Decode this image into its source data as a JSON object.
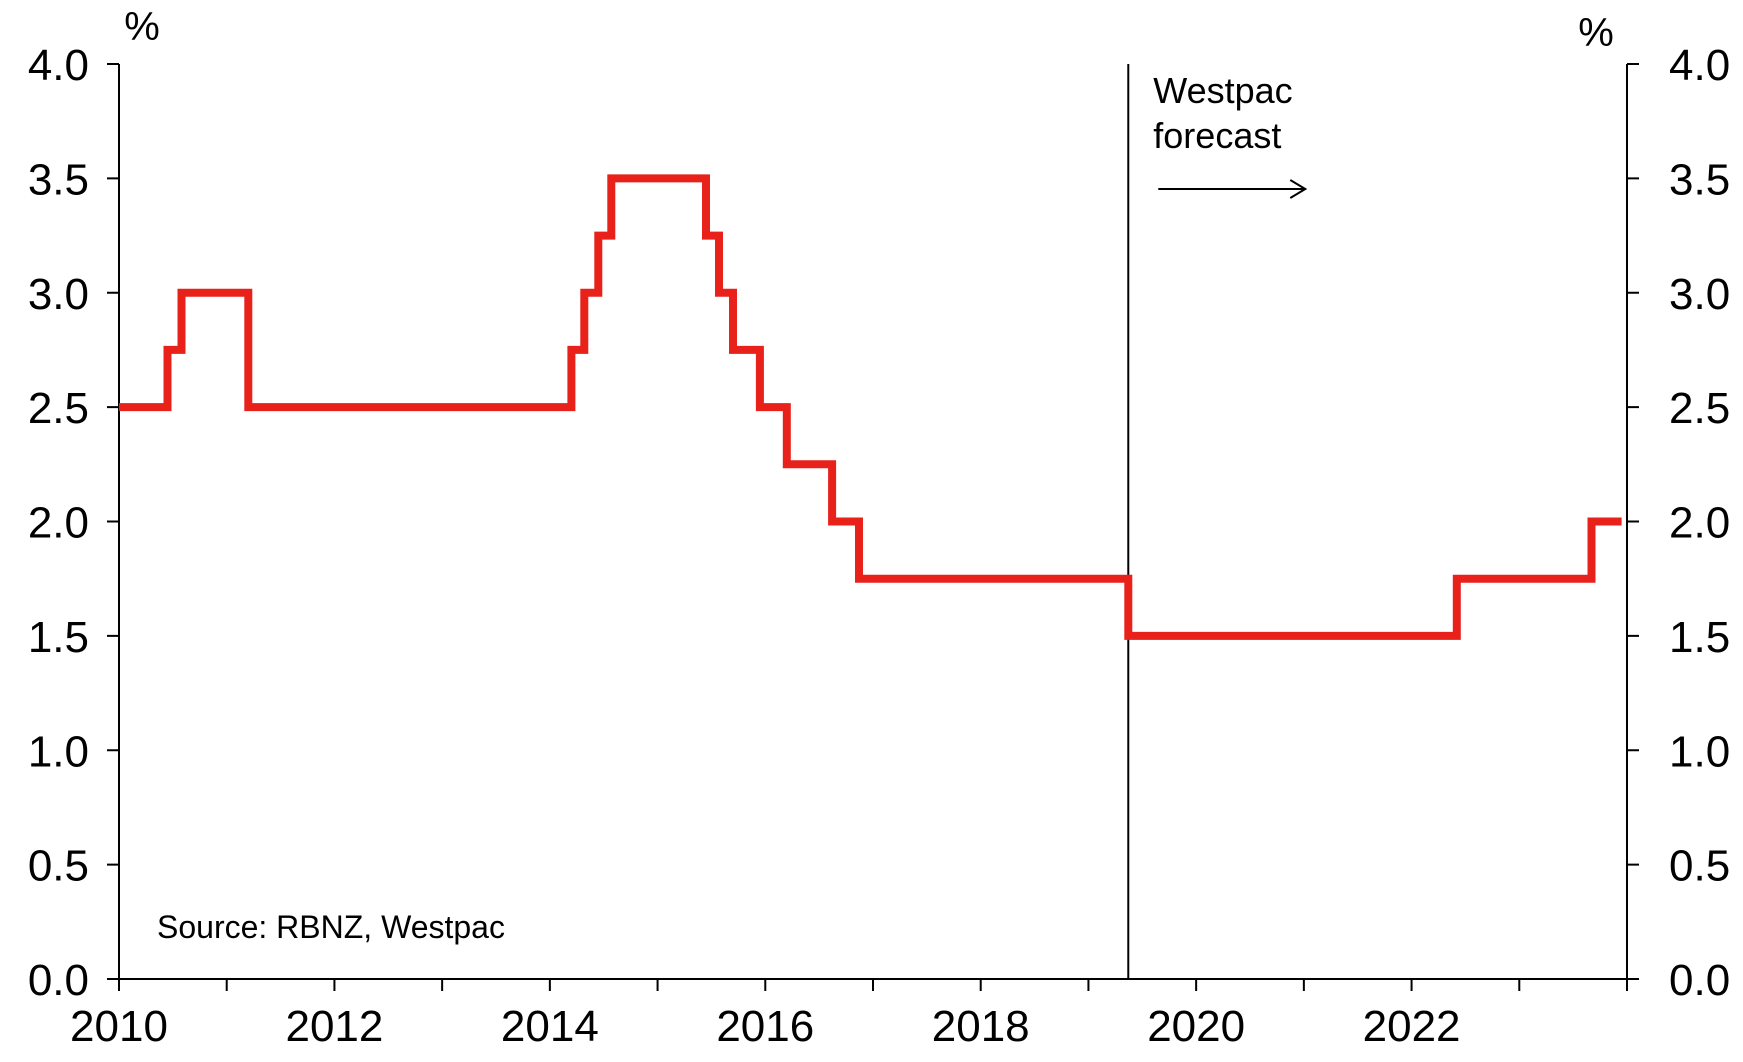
{
  "chart_data": {
    "type": "line",
    "step": true,
    "title": "",
    "xlabel": "",
    "ylabel_left": "%",
    "ylabel_right": "%",
    "xlim": [
      2010,
      2024
    ],
    "ylim": [
      0,
      4
    ],
    "y_ticks": [
      "0.0",
      "0.5",
      "1.0",
      "1.5",
      "2.0",
      "2.5",
      "3.0",
      "3.5",
      "4.0"
    ],
    "x_ticks": [
      "2010",
      "2012",
      "2014",
      "2016",
      "2018",
      "2020",
      "2022"
    ],
    "grid": false,
    "legend": "none",
    "source_note": "Source: RBNZ, Westpac",
    "forecast_start": 2019.37,
    "forecast_label_line1": "Westpac",
    "forecast_label_line2": "forecast",
    "series": [
      {
        "color": "#e8211b",
        "points": [
          [
            2010.0,
            2.5
          ],
          [
            2010.45,
            2.5
          ],
          [
            2010.45,
            2.75
          ],
          [
            2010.58,
            2.75
          ],
          [
            2010.58,
            3.0
          ],
          [
            2011.2,
            3.0
          ],
          [
            2011.2,
            2.5
          ],
          [
            2014.2,
            2.5
          ],
          [
            2014.2,
            2.75
          ],
          [
            2014.32,
            2.75
          ],
          [
            2014.32,
            3.0
          ],
          [
            2014.45,
            3.0
          ],
          [
            2014.45,
            3.25
          ],
          [
            2014.57,
            3.25
          ],
          [
            2014.57,
            3.5
          ],
          [
            2015.45,
            3.5
          ],
          [
            2015.45,
            3.25
          ],
          [
            2015.57,
            3.25
          ],
          [
            2015.57,
            3.0
          ],
          [
            2015.7,
            3.0
          ],
          [
            2015.7,
            2.75
          ],
          [
            2015.95,
            2.75
          ],
          [
            2015.95,
            2.5
          ],
          [
            2016.2,
            2.5
          ],
          [
            2016.2,
            2.25
          ],
          [
            2016.62,
            2.25
          ],
          [
            2016.62,
            2.0
          ],
          [
            2016.87,
            2.0
          ],
          [
            2016.87,
            1.75
          ],
          [
            2019.37,
            1.75
          ],
          [
            2019.37,
            1.5
          ],
          [
            2022.42,
            1.5
          ],
          [
            2022.42,
            1.75
          ],
          [
            2023.67,
            1.75
          ],
          [
            2023.67,
            2.0
          ],
          [
            2023.95,
            2.0
          ]
        ]
      }
    ]
  }
}
